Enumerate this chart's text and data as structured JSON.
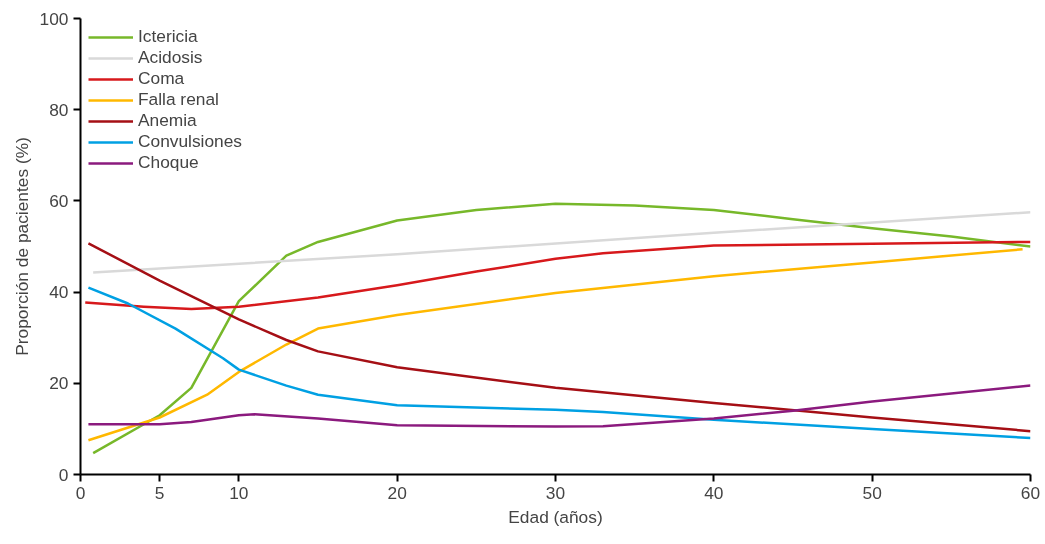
{
  "chart_data": {
    "type": "line",
    "xlabel": "Edad (años)",
    "ylabel": "Proporción de pacientes (%)",
    "xlim": [
      0,
      60
    ],
    "ylim": [
      0,
      100
    ],
    "xticks": [
      0,
      5,
      10,
      20,
      30,
      40,
      50,
      60
    ],
    "yticks": [
      0,
      20,
      40,
      60,
      80,
      100
    ],
    "grid": false,
    "legend": "top left",
    "line_style": "solid",
    "marker": "none",
    "series": [
      {
        "name": "Ictericia",
        "color": "#77b82a",
        "x": [
          0.8,
          5,
          7,
          10,
          13,
          15,
          20,
          25,
          30,
          35,
          40,
          45,
          50,
          55,
          60
        ],
        "values": [
          4.7,
          13,
          19,
          38,
          48,
          51,
          55.7,
          58,
          59.4,
          59,
          58,
          56,
          54,
          52.2,
          50
        ]
      },
      {
        "name": "Acidosis",
        "color": "#d9d9d9",
        "x": [
          0.8,
          20,
          40,
          60
        ],
        "values": [
          44.3,
          48.3,
          53,
          57.5
        ]
      },
      {
        "name": "Coma",
        "color": "#d7191c",
        "x": [
          0.3,
          4,
          7,
          10,
          15,
          20,
          25,
          30,
          33,
          40,
          50,
          60
        ],
        "values": [
          37.7,
          36.8,
          36.3,
          36.8,
          38.8,
          41.5,
          44.5,
          47.3,
          48.5,
          50.2,
          50.6,
          51
        ]
      },
      {
        "name": "Falla renal",
        "color": "#ffb800",
        "x": [
          0.5,
          5,
          8,
          10,
          13,
          15,
          20,
          30,
          40,
          50,
          59.5
        ],
        "values": [
          7.5,
          12.5,
          17.5,
          22.5,
          28.5,
          32,
          35,
          39.8,
          43.5,
          46.5,
          49.4
        ]
      },
      {
        "name": "Anemia",
        "color": "#a50f15",
        "x": [
          0.5,
          5,
          10,
          13,
          15,
          20,
          30,
          40,
          50,
          60
        ],
        "values": [
          50.7,
          42.5,
          34,
          29.5,
          27,
          23.5,
          19,
          15.7,
          12.5,
          9.5
        ]
      },
      {
        "name": "Convulsiones",
        "color": "#00a0e3",
        "x": [
          0.5,
          3,
          6,
          9,
          10,
          13,
          15,
          20,
          30,
          33,
          40,
          50,
          60
        ],
        "values": [
          41,
          37.5,
          32,
          25.5,
          23,
          19.5,
          17.5,
          15.2,
          14.2,
          13.7,
          12,
          10,
          8
        ]
      },
      {
        "name": "Choque",
        "color": "#8b1a7e",
        "x": [
          0.5,
          5,
          7,
          10,
          11,
          15,
          20,
          30,
          33,
          40,
          45,
          50,
          60
        ],
        "values": [
          11,
          11,
          11.5,
          13,
          13.2,
          12.3,
          10.8,
          10.5,
          10.6,
          12.3,
          14,
          16,
          19.5
        ]
      }
    ]
  }
}
